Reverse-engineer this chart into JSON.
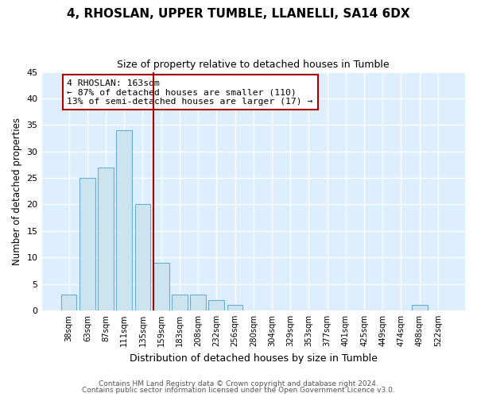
{
  "title": "4, RHOSLAN, UPPER TUMBLE, LLANELLI, SA14 6DX",
  "subtitle": "Size of property relative to detached houses in Tumble",
  "xlabel": "Distribution of detached houses by size in Tumble",
  "ylabel": "Number of detached properties",
  "bar_labels": [
    "38sqm",
    "63sqm",
    "87sqm",
    "111sqm",
    "135sqm",
    "159sqm",
    "183sqm",
    "208sqm",
    "232sqm",
    "256sqm",
    "280sqm",
    "304sqm",
    "329sqm",
    "353sqm",
    "377sqm",
    "401sqm",
    "425sqm",
    "449sqm",
    "474sqm",
    "498sqm",
    "522sqm"
  ],
  "bar_heights": [
    3,
    25,
    27,
    34,
    20,
    9,
    3,
    3,
    2,
    1,
    0,
    0,
    0,
    0,
    0,
    0,
    0,
    0,
    0,
    1,
    0
  ],
  "bar_color": "#cce4f0",
  "bar_edge_color": "#6aaed6",
  "vline_x_idx": 5,
  "vline_color": "#aa0000",
  "annotation_title": "4 RHOSLAN: 163sqm",
  "annotation_line1": "← 87% of detached houses are smaller (110)",
  "annotation_line2": "13% of semi-detached houses are larger (17) →",
  "annotation_box_color": "#ffffff",
  "annotation_box_edge": "#aa0000",
  "ylim": [
    0,
    45
  ],
  "yticks": [
    0,
    5,
    10,
    15,
    20,
    25,
    30,
    35,
    40,
    45
  ],
  "footer1": "Contains HM Land Registry data © Crown copyright and database right 2024.",
  "footer2": "Contains public sector information licensed under the Open Government Licence v3.0.",
  "plot_bg_color": "#ddeeff",
  "fig_bg_color": "#ffffff",
  "grid_color": "#ffffff"
}
